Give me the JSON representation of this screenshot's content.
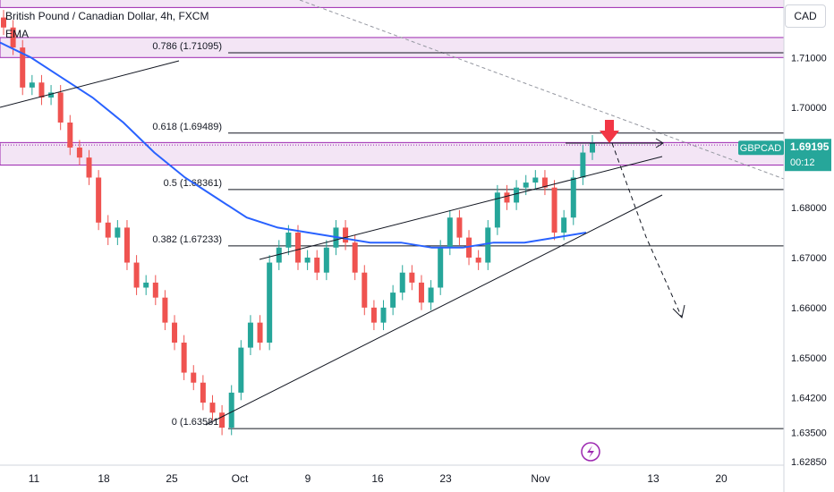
{
  "header": {
    "title": "British Pound / Canadian Dollar, 4h, FXCM",
    "indicator": "EMA",
    "currency": "CAD"
  },
  "price_tag": {
    "symbol": "GBPCAD",
    "price": "1.69195",
    "countdown": "00:12"
  },
  "colors": {
    "up": "#26a69a",
    "down": "#ef5350",
    "ema": "#2962ff",
    "zone_fill": "#f3e5f5",
    "zone_line": "#9c27b0",
    "arrow": "#f23645",
    "tag": "#26a69a",
    "lightning": "#9c27b0"
  },
  "fib_labels": [
    {
      "text": "0.786 (1.71095)",
      "price": 1.71095
    },
    {
      "text": "0.618 (1.69489)",
      "price": 1.69489
    },
    {
      "text": "0.5 (1.68361)",
      "price": 1.68361
    },
    {
      "text": "0.382 (1.67233)",
      "price": 1.67233
    },
    {
      "text": "0 (1.63581)",
      "price": 1.63581
    }
  ],
  "icons": [
    "down-arrow-icon",
    "lightning-icon"
  ],
  "chart_data": {
    "type": "candlestick",
    "title": "British Pound / Canadian Dollar, 4h, FXCM",
    "ylim": [
      1.6285,
      1.7215
    ],
    "y_ticks": [
      "1.71000",
      "1.70000",
      "1.69195",
      "1.68000",
      "1.67000",
      "1.66000",
      "1.65000",
      "1.64200",
      "1.63500",
      "1.62850"
    ],
    "x_ticks": [
      "11",
      "18",
      "25",
      "Oct",
      "9",
      "16",
      "23",
      "Nov",
      "13",
      "20"
    ],
    "grid": false,
    "legend": "none",
    "current_price": 1.69195,
    "candles_close_path": [
      1.716,
      1.712,
      1.704,
      1.705,
      1.702,
      1.703,
      1.697,
      1.692,
      1.69,
      1.686,
      1.677,
      1.674,
      1.676,
      1.669,
      1.664,
      1.665,
      1.662,
      1.657,
      1.653,
      1.647,
      1.645,
      1.641,
      1.639,
      1.636,
      1.643,
      1.652,
      1.657,
      1.653,
      1.669,
      1.672,
      1.675,
      1.669,
      1.67,
      1.667,
      1.672,
      1.676,
      1.673,
      1.667,
      1.66,
      1.657,
      1.66,
      1.663,
      1.667,
      1.665,
      1.661,
      1.664,
      1.672,
      1.678,
      1.674,
      1.67,
      1.669,
      1.676,
      1.683,
      1.681,
      1.684,
      1.685,
      1.686,
      1.684,
      1.675,
      1.678,
      1.686,
      1.691,
      1.693
    ],
    "ema_series": [
      1.713,
      1.71,
      1.706,
      1.702,
      1.697,
      1.691,
      1.686,
      1.682,
      1.678,
      1.676,
      1.675,
      1.674,
      1.673,
      1.673,
      1.672,
      1.672,
      1.673,
      1.673,
      1.674,
      1.675
    ],
    "fib_levels": [
      {
        "level": "0.786",
        "value": 1.71095
      },
      {
        "level": "0.618",
        "value": 1.69489
      },
      {
        "level": "0.5",
        "value": 1.68361
      },
      {
        "level": "0.382",
        "value": 1.67233
      },
      {
        "level": "0",
        "value": 1.63581
      }
    ],
    "zones": [
      {
        "from": 1.71,
        "to": 1.714
      },
      {
        "from": 1.6885,
        "to": 1.693
      },
      {
        "from": 1.72,
        "to": 1.722
      }
    ]
  }
}
